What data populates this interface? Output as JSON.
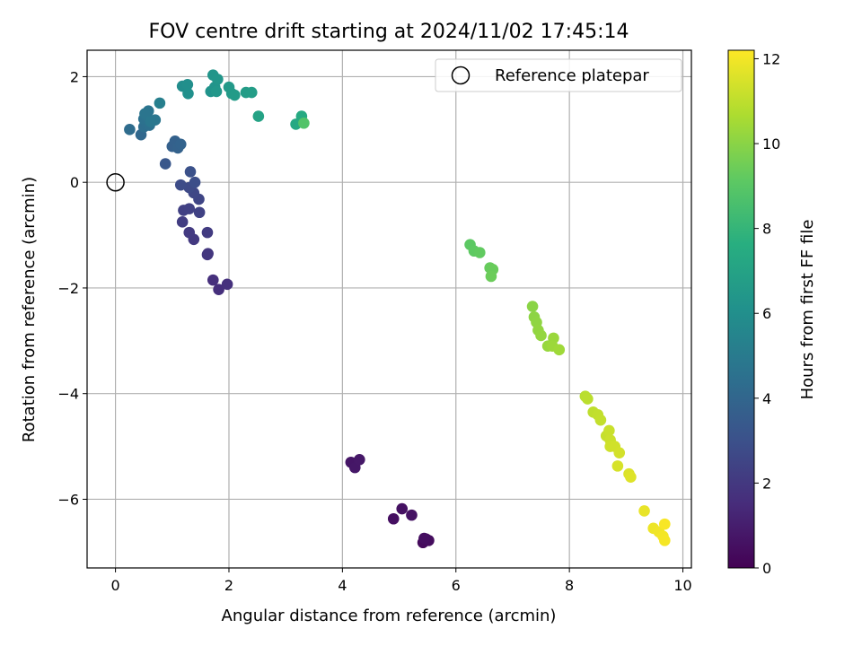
{
  "chart_data": {
    "type": "scatter",
    "title": "FOV centre drift starting at 2024/11/02 17:45:14",
    "xlabel": "Angular distance from reference (arcmin)",
    "ylabel": "Rotation from reference (arcmin)",
    "xlim": [
      -0.5,
      10.15
    ],
    "ylim": [
      -7.3,
      2.5
    ],
    "xticks": [
      0,
      2,
      4,
      6,
      8,
      10
    ],
    "yticks": [
      -6,
      -4,
      -2,
      0,
      2
    ],
    "grid": true,
    "colormap": "viridis",
    "colorbar": {
      "label": "Hours from first FF file",
      "min": 0,
      "max": 12.2,
      "ticks": [
        0,
        2,
        4,
        6,
        8,
        10,
        12
      ]
    },
    "legend": {
      "position": "top-right",
      "entries": [
        {
          "label": "Reference platepar",
          "marker": "open-circle"
        }
      ]
    },
    "reference_point": {
      "x": 0,
      "y": 0
    },
    "points": [
      {
        "x": 5.42,
        "y": -6.82,
        "h": 0.3
      },
      {
        "x": 5.47,
        "y": -6.75,
        "h": 0.35
      },
      {
        "x": 5.52,
        "y": -6.78,
        "h": 0.4
      },
      {
        "x": 5.44,
        "y": -6.74,
        "h": 0.45
      },
      {
        "x": 4.9,
        "y": -6.37,
        "h": 0.5
      },
      {
        "x": 5.05,
        "y": -6.18,
        "h": 0.55
      },
      {
        "x": 5.22,
        "y": -6.3,
        "h": 0.6
      },
      {
        "x": 4.15,
        "y": -5.3,
        "h": 0.7
      },
      {
        "x": 4.22,
        "y": -5.4,
        "h": 0.75
      },
      {
        "x": 4.3,
        "y": -5.25,
        "h": 0.8
      },
      {
        "x": 1.82,
        "y": -2.03,
        "h": 1.6
      },
      {
        "x": 1.72,
        "y": -1.85,
        "h": 1.65
      },
      {
        "x": 1.97,
        "y": -1.93,
        "h": 1.7
      },
      {
        "x": 1.62,
        "y": -1.37,
        "h": 1.9
      },
      {
        "x": 1.63,
        "y": -1.35,
        "h": 1.95
      },
      {
        "x": 1.38,
        "y": -1.08,
        "h": 2.0
      },
      {
        "x": 1.3,
        "y": -0.95,
        "h": 2.05
      },
      {
        "x": 1.62,
        "y": -0.95,
        "h": 2.1
      },
      {
        "x": 1.18,
        "y": -0.75,
        "h": 2.2
      },
      {
        "x": 1.2,
        "y": -0.53,
        "h": 2.3
      },
      {
        "x": 1.3,
        "y": -0.5,
        "h": 2.35
      },
      {
        "x": 1.48,
        "y": -0.57,
        "h": 2.4
      },
      {
        "x": 1.47,
        "y": -0.32,
        "h": 2.5
      },
      {
        "x": 1.38,
        "y": -0.2,
        "h": 2.6
      },
      {
        "x": 1.3,
        "y": -0.1,
        "h": 2.7
      },
      {
        "x": 1.15,
        "y": -0.05,
        "h": 2.8
      },
      {
        "x": 1.4,
        "y": 0.0,
        "h": 2.9
      },
      {
        "x": 1.32,
        "y": 0.2,
        "h": 3.0
      },
      {
        "x": 0.88,
        "y": 0.35,
        "h": 3.3
      },
      {
        "x": 1.12,
        "y": 0.7,
        "h": 3.6
      },
      {
        "x": 1.0,
        "y": 0.68,
        "h": 3.7
      },
      {
        "x": 1.05,
        "y": 0.78,
        "h": 3.75
      },
      {
        "x": 1.1,
        "y": 0.65,
        "h": 3.8
      },
      {
        "x": 1.15,
        "y": 0.72,
        "h": 3.85
      },
      {
        "x": 0.45,
        "y": 0.9,
        "h": 4.1
      },
      {
        "x": 0.25,
        "y": 1.0,
        "h": 4.3
      },
      {
        "x": 0.5,
        "y": 1.05,
        "h": 4.4
      },
      {
        "x": 0.55,
        "y": 1.1,
        "h": 4.45
      },
      {
        "x": 0.6,
        "y": 1.08,
        "h": 4.5
      },
      {
        "x": 0.5,
        "y": 1.2,
        "h": 4.55
      },
      {
        "x": 0.55,
        "y": 1.25,
        "h": 4.6
      },
      {
        "x": 0.58,
        "y": 1.35,
        "h": 4.65
      },
      {
        "x": 0.52,
        "y": 1.3,
        "h": 4.7
      },
      {
        "x": 0.7,
        "y": 1.18,
        "h": 4.75
      },
      {
        "x": 0.62,
        "y": 1.15,
        "h": 4.8
      },
      {
        "x": 0.78,
        "y": 1.5,
        "h": 5.2
      },
      {
        "x": 1.18,
        "y": 1.82,
        "h": 5.9
      },
      {
        "x": 1.27,
        "y": 1.85,
        "h": 6.0
      },
      {
        "x": 1.28,
        "y": 1.68,
        "h": 6.05
      },
      {
        "x": 1.68,
        "y": 1.72,
        "h": 6.2
      },
      {
        "x": 1.75,
        "y": 1.8,
        "h": 6.25
      },
      {
        "x": 1.72,
        "y": 2.03,
        "h": 6.3
      },
      {
        "x": 1.8,
        "y": 1.95,
        "h": 6.35
      },
      {
        "x": 1.78,
        "y": 1.72,
        "h": 6.4
      },
      {
        "x": 2.0,
        "y": 1.8,
        "h": 6.5
      },
      {
        "x": 2.05,
        "y": 1.68,
        "h": 6.55
      },
      {
        "x": 2.1,
        "y": 1.65,
        "h": 6.6
      },
      {
        "x": 2.3,
        "y": 1.7,
        "h": 6.7
      },
      {
        "x": 2.4,
        "y": 1.7,
        "h": 6.75
      },
      {
        "x": 2.52,
        "y": 1.25,
        "h": 7.0
      },
      {
        "x": 3.18,
        "y": 1.1,
        "h": 7.3
      },
      {
        "x": 3.28,
        "y": 1.25,
        "h": 7.4
      },
      {
        "x": 3.32,
        "y": 1.12,
        "h": 8.8
      },
      {
        "x": 6.25,
        "y": -1.18,
        "h": 9.1
      },
      {
        "x": 6.32,
        "y": -1.3,
        "h": 9.15
      },
      {
        "x": 6.42,
        "y": -1.33,
        "h": 9.2
      },
      {
        "x": 6.6,
        "y": -1.62,
        "h": 9.3
      },
      {
        "x": 6.65,
        "y": -1.65,
        "h": 9.35
      },
      {
        "x": 6.62,
        "y": -1.78,
        "h": 9.4
      },
      {
        "x": 7.35,
        "y": -2.35,
        "h": 10.0
      },
      {
        "x": 7.38,
        "y": -2.55,
        "h": 10.05
      },
      {
        "x": 7.42,
        "y": -2.65,
        "h": 10.1
      },
      {
        "x": 7.45,
        "y": -2.8,
        "h": 10.15
      },
      {
        "x": 7.5,
        "y": -2.9,
        "h": 10.2
      },
      {
        "x": 7.62,
        "y": -3.1,
        "h": 10.25
      },
      {
        "x": 7.72,
        "y": -2.95,
        "h": 10.3
      },
      {
        "x": 7.7,
        "y": -3.1,
        "h": 10.35
      },
      {
        "x": 7.82,
        "y": -3.17,
        "h": 10.4
      },
      {
        "x": 8.28,
        "y": -4.05,
        "h": 10.9
      },
      {
        "x": 8.32,
        "y": -4.1,
        "h": 10.95
      },
      {
        "x": 8.42,
        "y": -4.35,
        "h": 11.0
      },
      {
        "x": 8.5,
        "y": -4.4,
        "h": 11.05
      },
      {
        "x": 8.55,
        "y": -4.5,
        "h": 11.1
      },
      {
        "x": 8.65,
        "y": -4.8,
        "h": 11.15
      },
      {
        "x": 8.7,
        "y": -4.7,
        "h": 11.2
      },
      {
        "x": 8.72,
        "y": -4.88,
        "h": 11.25
      },
      {
        "x": 8.72,
        "y": -5.0,
        "h": 11.3
      },
      {
        "x": 8.8,
        "y": -5.0,
        "h": 11.35
      },
      {
        "x": 8.88,
        "y": -5.12,
        "h": 11.4
      },
      {
        "x": 8.85,
        "y": -5.37,
        "h": 11.45
      },
      {
        "x": 9.05,
        "y": -5.52,
        "h": 11.55
      },
      {
        "x": 9.08,
        "y": -5.58,
        "h": 11.6
      },
      {
        "x": 9.32,
        "y": -6.22,
        "h": 11.8
      },
      {
        "x": 9.48,
        "y": -6.55,
        "h": 11.9
      },
      {
        "x": 9.58,
        "y": -6.62,
        "h": 11.95
      },
      {
        "x": 9.65,
        "y": -6.7,
        "h": 12.0
      },
      {
        "x": 9.68,
        "y": -6.78,
        "h": 12.05
      },
      {
        "x": 9.68,
        "y": -6.47,
        "h": 12.1
      }
    ]
  }
}
